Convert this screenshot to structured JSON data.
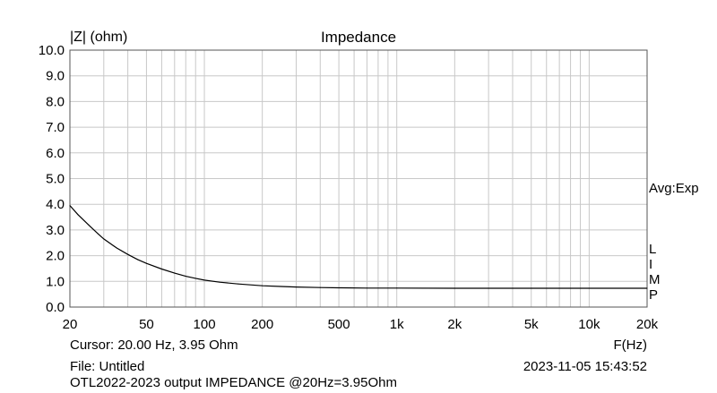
{
  "chart_data": {
    "type": "line",
    "title": "Impedance",
    "ylabel": "|Z| (ohm)",
    "xlabel": "F(Hz)",
    "xscale": "log",
    "xlim": [
      20,
      20000
    ],
    "ylim": [
      0,
      10
    ],
    "grid": true,
    "yticks": [
      "0.0",
      "1.0",
      "2.0",
      "3.0",
      "4.0",
      "5.0",
      "6.0",
      "7.0",
      "8.0",
      "9.0",
      "10.0"
    ],
    "xticks": [
      {
        "value": 20,
        "label": "20"
      },
      {
        "value": 50,
        "label": "50"
      },
      {
        "value": 100,
        "label": "100"
      },
      {
        "value": 200,
        "label": "200"
      },
      {
        "value": 500,
        "label": "500"
      },
      {
        "value": 1000,
        "label": "1k"
      },
      {
        "value": 2000,
        "label": "2k"
      },
      {
        "value": 5000,
        "label": "5k"
      },
      {
        "value": 10000,
        "label": "10k"
      },
      {
        "value": 20000,
        "label": "20k"
      }
    ],
    "series": [
      {
        "color": "#000000",
        "x": [
          20,
          22,
          25,
          28,
          30,
          35,
          40,
          45,
          50,
          60,
          70,
          80,
          90,
          100,
          120,
          150,
          200,
          250,
          300,
          400,
          500,
          700,
          1000,
          2000,
          5000,
          10000,
          20000
        ],
        "y": [
          3.95,
          3.6,
          3.2,
          2.85,
          2.65,
          2.3,
          2.05,
          1.85,
          1.7,
          1.48,
          1.32,
          1.2,
          1.12,
          1.05,
          0.97,
          0.9,
          0.83,
          0.8,
          0.78,
          0.76,
          0.75,
          0.74,
          0.74,
          0.73,
          0.73,
          0.73,
          0.73
        ]
      }
    ]
  },
  "header": {
    "ylabel": "|Z| (ohm)",
    "title": "Impedance"
  },
  "side": {
    "avg": "Avg:Exp",
    "lmp": [
      "L",
      "I",
      "M",
      "P"
    ]
  },
  "footer": {
    "cursor": "Cursor: 20.00 Hz, 3.95 Ohm",
    "xunit": "F(Hz)",
    "file": "File: Untitled",
    "date": "2023-11-05 15:43:52",
    "note": "OTL2022-2023 output IMPEDANCE @20Hz=3.95Ohm"
  }
}
